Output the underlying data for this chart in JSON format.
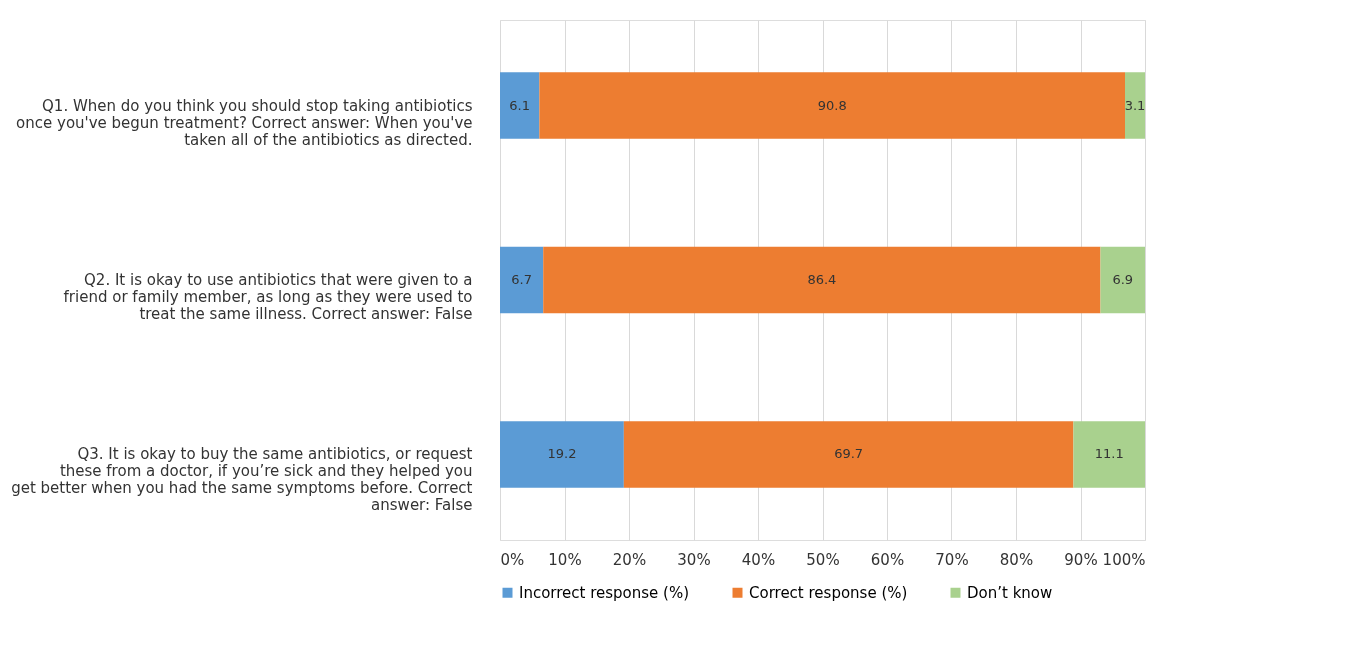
{
  "chart_data": {
    "type": "bar",
    "orientation": "horizontal",
    "stacked": true,
    "categories": [
      "Q1. When do you think you should stop taking antibiotics once you've begun treatment? Correct answer: When you've taken all of the antibiotics as directed.",
      "Q2. It is okay to use antibiotics that were given to a friend or family member, as long as they were used to treat the same illness. Correct answer: False",
      "Q3. It is okay to buy the same antibiotics, or request these from a doctor, if you’re sick and they helped you get better when you had the same symptoms before. Correct answer: False"
    ],
    "series": [
      {
        "name": "Incorrect response (%)",
        "color": "#5b9bd5",
        "values": [
          6.1,
          6.7,
          19.2
        ]
      },
      {
        "name": "Correct response (%)",
        "color": "#ed7d31",
        "values": [
          90.8,
          86.4,
          69.7
        ]
      },
      {
        "name": "Don’t know",
        "color": "#a9d18e",
        "values": [
          3.1,
          6.9,
          11.1
        ]
      }
    ],
    "xlim": [
      0,
      100
    ],
    "xticks": [
      {
        "value": 0,
        "label": "0%"
      },
      {
        "value": 10,
        "label": "10%"
      },
      {
        "value": 20,
        "label": "20%"
      },
      {
        "value": 30,
        "label": "30%"
      },
      {
        "value": 40,
        "label": "40%"
      },
      {
        "value": 50,
        "label": "50%"
      },
      {
        "value": 60,
        "label": "60%"
      },
      {
        "value": 70,
        "label": "70%"
      },
      {
        "value": 80,
        "label": "80%"
      },
      {
        "value": 90,
        "label": "90%"
      },
      {
        "value": 100,
        "label": "100%"
      }
    ],
    "grid": "x",
    "legend": "bottom",
    "data_labels": true
  }
}
